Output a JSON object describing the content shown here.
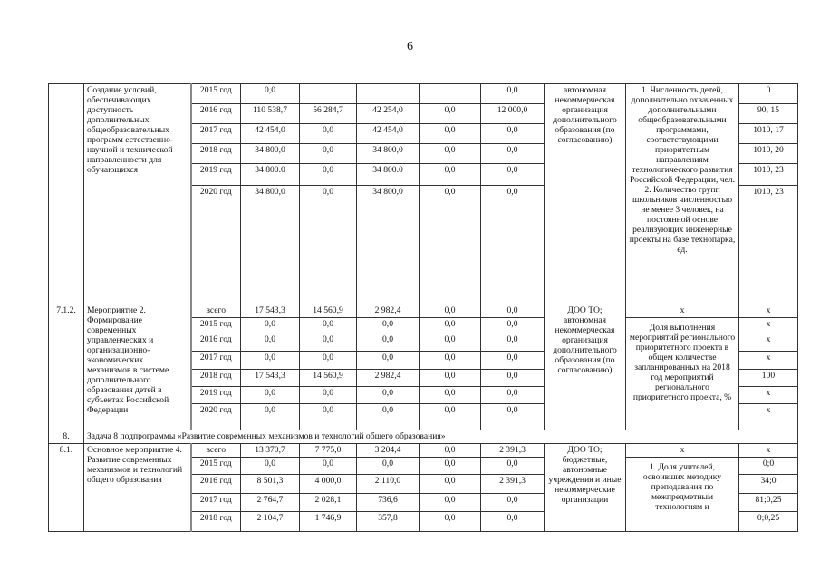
{
  "page_number": "6",
  "sections": [
    {
      "num": "",
      "name": "Создание условий, обеспечивающих доступность дополнительных общеобразовательных программ естественно-научной и технической направленности для обучающихся",
      "executor": "автономная некоммерческая организация дополнительного образования (по согласованию)",
      "indicator": "1. Численность детей, дополнительно охваченных дополнительными общеобразовательными программами, соответствующими приоритетным направлениям технологического развития Российской Федерации, чел.\n2. Количество групп школьников численностью не менее 3 человек, на постоянной основе реализующих инженерные проекты на базе технопарка, ед.",
      "indicator_head": "",
      "rows": [
        {
          "period": "2015 год",
          "total": "0,0",
          "c1": "",
          "c2": "",
          "c3": "",
          "c4": "0,0",
          "value": "0"
        },
        {
          "period": "2016 год",
          "total": "110 538,7",
          "c1": "56 284,7",
          "c2": "42 254,0",
          "c3": "0,0",
          "c4": "12 000,0",
          "value": "90, 15"
        },
        {
          "period": "2017 год",
          "total": "42 454,0",
          "c1": "0,0",
          "c2": "42 454,0",
          "c3": "0,0",
          "c4": "0,0",
          "value": "1010, 17"
        },
        {
          "period": "2018 год",
          "total": "34 800,0",
          "c1": "0,0",
          "c2": "34 800,0",
          "c3": "0,0",
          "c4": "0,0",
          "value": "1010, 20"
        },
        {
          "period": "2019 год",
          "total": "34 800.0",
          "c1": "0,0",
          "c2": "34 800.0",
          "c3": "0,0",
          "c4": "0,0",
          "value": "1010, 23"
        },
        {
          "period": "2020 год",
          "total": "34 800,0",
          "c1": "0,0",
          "c2": "34 800,0",
          "c3": "0,0",
          "c4": "0,0",
          "value": "1010, 23"
        }
      ]
    },
    {
      "num": "7.1.2.",
      "name": "Мероприятие 2. Формирование современных управленческих и организационно-экономических механизмов в системе дополнительного образования детей  в субъектах Российской Федерации",
      "executor": "ДОО ТО; автономная некоммерческая организация дополнительного образования (по согласованию)",
      "indicator_head": "х",
      "indicator": "Доля выполнения мероприятий регионального приоритетного проекта в общем количестве запланированных на 2018 год мероприятий регионального приоритетного проекта, %",
      "rows": [
        {
          "period": "всего",
          "total": "17 543,3",
          "c1": "14 560,9",
          "c2": "2 982,4",
          "c3": "0,0",
          "c4": "0,0",
          "value": "х"
        },
        {
          "period": "2015 год",
          "total": "0,0",
          "c1": "0,0",
          "c2": "0,0",
          "c3": "0,0",
          "c4": "0,0",
          "value": "х"
        },
        {
          "period": "2016 год",
          "total": "0,0",
          "c1": "0,0",
          "c2": "0,0",
          "c3": "0,0",
          "c4": "0,0",
          "value": "х"
        },
        {
          "period": "2017 год",
          "total": "0,0",
          "c1": "0,0",
          "c2": "0,0",
          "c3": "0,0",
          "c4": "0,0",
          "value": "х"
        },
        {
          "period": "2018 год",
          "total": "17 543,3",
          "c1": "14 560,9",
          "c2": "2 982,4",
          "c3": "0,0",
          "c4": "0,0",
          "value": "100"
        },
        {
          "period": "2019 год",
          "total": "0,0",
          "c1": "0,0",
          "c2": "0,0",
          "c3": "0,0",
          "c4": "0,0",
          "value": "х"
        },
        {
          "period": "2020 год",
          "total": "0,0",
          "c1": "0,0",
          "c2": "0,0",
          "c3": "0,0",
          "c4": "0,0",
          "value": "х"
        }
      ]
    },
    {
      "task_row": true,
      "num": "8.",
      "name": "Задача 8 подпрограммы «Развитие современных механизмов и технологий общего образования»"
    },
    {
      "num": "8.1.",
      "name": "Основное мероприятие 4. Развитие современных механизмов и технологий общего образования",
      "executor": "ДОО ТО; бюджетные, автономные учреждения и иные некоммерческие организации",
      "indicator_head": "х",
      "indicator": "1. Доля учителей, освоивших методику преподавания  по межпредметным технологиям и",
      "rows": [
        {
          "period": "всего",
          "total": "13 370,7",
          "c1": "7 775,0",
          "c2": "3 204,4",
          "c3": "0,0",
          "c4": "2 391,3",
          "value": "х"
        },
        {
          "period": "2015 год",
          "total": "0,0",
          "c1": "0,0",
          "c2": "0,0",
          "c3": "0,0",
          "c4": "0,0",
          "value": "0;0"
        },
        {
          "period": "2016 год",
          "total": "8 501,3",
          "c1": "4 000,0",
          "c2": "2 110,0",
          "c3": "0,0",
          "c4": "2 391,3",
          "value": "34;0"
        },
        {
          "period": "2017 год",
          "total": "2 764,7",
          "c1": "2 028,1",
          "c2": "736,6",
          "c3": "0,0",
          "c4": "0,0",
          "value": "81;0,25"
        },
        {
          "period": "2018 год",
          "total": "2 104,7",
          "c1": "1 746,9",
          "c2": "357,8",
          "c3": "0,0",
          "c4": "0,0",
          "value": "0;0,25"
        }
      ]
    }
  ]
}
